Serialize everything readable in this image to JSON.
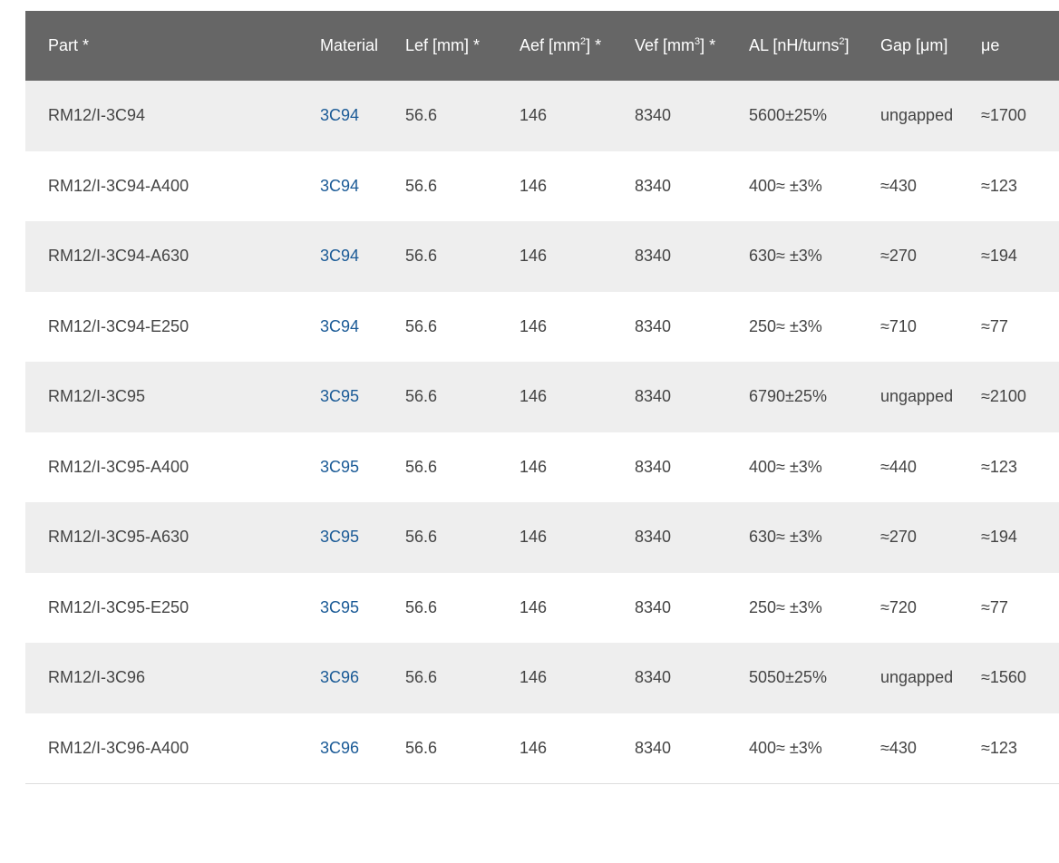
{
  "table": {
    "headers": {
      "part": "Part *",
      "material": "Material",
      "lef": "Lef [mm] *",
      "aef_pre": "Aef [mm",
      "aef_sup": "2",
      "aef_post": "] *",
      "vef_pre": "Vef [mm",
      "vef_sup": "3",
      "vef_post": "] *",
      "al_pre": "AL [nH/turns",
      "al_sup": "2",
      "al_post": "]",
      "gap": "Gap [μm]",
      "ue": "μe"
    },
    "rows": [
      {
        "part": "RM12/I-3C94",
        "material": "3C94",
        "lef": "56.6",
        "aef": "146",
        "vef": "8340",
        "al": "5600±25%",
        "gap": "ungapped",
        "ue": "≈1700"
      },
      {
        "part": "RM12/I-3C94-A400",
        "material": "3C94",
        "lef": "56.6",
        "aef": "146",
        "vef": "8340",
        "al": "400≈ ±3%",
        "gap": "≈430",
        "ue": "≈123"
      },
      {
        "part": "RM12/I-3C94-A630",
        "material": "3C94",
        "lef": "56.6",
        "aef": "146",
        "vef": "8340",
        "al": "630≈ ±3%",
        "gap": "≈270",
        "ue": "≈194"
      },
      {
        "part": "RM12/I-3C94-E250",
        "material": "3C94",
        "lef": "56.6",
        "aef": "146",
        "vef": "8340",
        "al": "250≈ ±3%",
        "gap": "≈710",
        "ue": "≈77"
      },
      {
        "part": "RM12/I-3C95",
        "material": "3C95",
        "lef": "56.6",
        "aef": "146",
        "vef": "8340",
        "al": "6790±25%",
        "gap": "ungapped",
        "ue": "≈2100"
      },
      {
        "part": "RM12/I-3C95-A400",
        "material": "3C95",
        "lef": "56.6",
        "aef": "146",
        "vef": "8340",
        "al": "400≈ ±3%",
        "gap": "≈440",
        "ue": "≈123"
      },
      {
        "part": "RM12/I-3C95-A630",
        "material": "3C95",
        "lef": "56.6",
        "aef": "146",
        "vef": "8340",
        "al": "630≈ ±3%",
        "gap": "≈270",
        "ue": "≈194"
      },
      {
        "part": "RM12/I-3C95-E250",
        "material": "3C95",
        "lef": "56.6",
        "aef": "146",
        "vef": "8340",
        "al": "250≈ ±3%",
        "gap": "≈720",
        "ue": "≈77"
      },
      {
        "part": "RM12/I-3C96",
        "material": "3C96",
        "lef": "56.6",
        "aef": "146",
        "vef": "8340",
        "al": "5050±25%",
        "gap": "ungapped",
        "ue": "≈1560"
      },
      {
        "part": "RM12/I-3C96-A400",
        "material": "3C96",
        "lef": "56.6",
        "aef": "146",
        "vef": "8340",
        "al": "400≈ ±3%",
        "gap": "≈430",
        "ue": "≈123"
      }
    ]
  },
  "colors": {
    "header_bg": "#666666",
    "row_alt_bg": "#eeeeee",
    "link": "#1a5a96",
    "text": "#444444"
  }
}
